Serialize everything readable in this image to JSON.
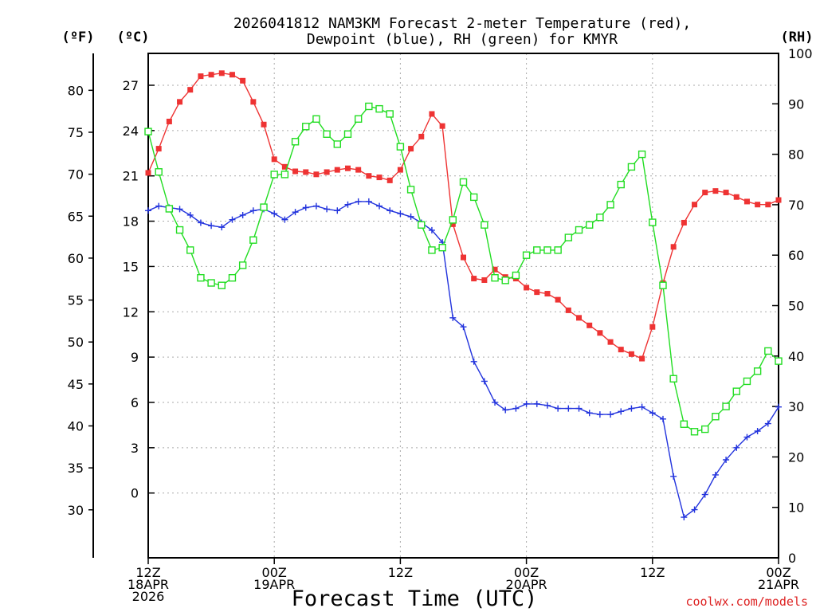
{
  "chart_data": {
    "type": "line",
    "title": [
      "2026041812 NAM3KM Forecast 2-meter Temperature (red),",
      "Dewpoint (blue), RH (green) for KMYR"
    ],
    "xlabel": "Forecast Time (UTC)",
    "credit": "coolwx.com/models",
    "units": {
      "f": "(ºF)",
      "c": "(ºC)",
      "rh": "(RH)"
    },
    "x_hours": [
      0,
      60
    ],
    "x_ticks": [
      {
        "hour": 0,
        "lines": [
          "12Z",
          "18APR",
          "2026"
        ]
      },
      {
        "hour": 12,
        "lines": [
          "00Z",
          "19APR"
        ]
      },
      {
        "hour": 24,
        "lines": [
          "12Z"
        ]
      },
      {
        "hour": 36,
        "lines": [
          "00Z",
          "20APR"
        ]
      },
      {
        "hour": 48,
        "lines": [
          "12Z"
        ]
      },
      {
        "hour": 60,
        "lines": [
          "00Z",
          "21APR"
        ]
      }
    ],
    "y_c": {
      "range": [
        -4.29,
        29.11
      ],
      "ticks": [
        "0",
        "3",
        "6",
        "9",
        "12",
        "15",
        "18",
        "21",
        "24",
        "27"
      ]
    },
    "y_f": {
      "range": [
        24.28,
        84.4
      ],
      "ticks": [
        "30",
        "35",
        "40",
        "45",
        "50",
        "55",
        "60",
        "65",
        "70",
        "75",
        "80"
      ]
    },
    "y_rh": {
      "range": [
        0,
        100
      ],
      "ticks": [
        "0",
        "10",
        "20",
        "30",
        "40",
        "50",
        "60",
        "70",
        "80",
        "90",
        "100"
      ]
    },
    "colors": {
      "temperature": "#ee3333",
      "dewpoint": "#2233dd",
      "rh": "#22dd22"
    },
    "series": [
      {
        "name": "Temperature (°C)",
        "axis": "c",
        "x": [
          0,
          1,
          2,
          3,
          4,
          5,
          6,
          7,
          8,
          9,
          10,
          11,
          12,
          13,
          14,
          15,
          16,
          17,
          18,
          19,
          20,
          21,
          22,
          23,
          24,
          25,
          26,
          27,
          28,
          29,
          30,
          31,
          32,
          33,
          34,
          35,
          36,
          37,
          38,
          39,
          40,
          41,
          42,
          43,
          44,
          45,
          46,
          47,
          48,
          49,
          50,
          51,
          52,
          53,
          54,
          55,
          56,
          57,
          58,
          59,
          60
        ],
        "values": [
          21.2,
          22.8,
          24.6,
          25.9,
          26.7,
          27.6,
          27.7,
          27.8,
          27.7,
          27.3,
          25.9,
          24.4,
          22.1,
          21.6,
          21.3,
          21.25,
          21.1,
          21.25,
          21.4,
          21.5,
          21.4,
          21.0,
          20.9,
          20.7,
          21.4,
          22.8,
          23.6,
          25.1,
          24.3,
          17.8,
          15.6,
          14.2,
          14.1,
          14.8,
          14.3,
          14.2,
          13.6,
          13.3,
          13.2,
          12.8,
          12.1,
          11.6,
          11.1,
          10.6,
          10.0,
          9.5,
          9.2,
          8.9,
          11.0,
          13.9,
          16.3,
          17.9,
          19.1,
          19.9,
          20.0,
          19.9,
          19.6,
          19.3,
          19.1,
          19.1,
          19.4
        ]
      },
      {
        "name": "Dewpoint (°C)",
        "axis": "c",
        "x": [
          0,
          1,
          2,
          3,
          4,
          5,
          6,
          7,
          8,
          9,
          10,
          11,
          12,
          13,
          14,
          15,
          16,
          17,
          18,
          19,
          20,
          21,
          22,
          23,
          24,
          25,
          26,
          27,
          28,
          29,
          30,
          31,
          32,
          33,
          34,
          35,
          36,
          37,
          38,
          39,
          40,
          41,
          42,
          43,
          44,
          45,
          46,
          47,
          48,
          49,
          50,
          51,
          52,
          53,
          54,
          55,
          56,
          57,
          58,
          59,
          60
        ],
        "values": [
          18.7,
          19.0,
          18.9,
          18.8,
          18.4,
          17.9,
          17.7,
          17.6,
          18.1,
          18.4,
          18.7,
          18.8,
          18.5,
          18.1,
          18.6,
          18.9,
          19.0,
          18.8,
          18.7,
          19.1,
          19.3,
          19.3,
          19.0,
          18.7,
          18.5,
          18.3,
          17.9,
          17.4,
          16.6,
          11.6,
          11.0,
          8.7,
          7.4,
          6.0,
          5.5,
          5.6,
          5.9,
          5.9,
          5.8,
          5.6,
          5.6,
          5.6,
          5.3,
          5.2,
          5.2,
          5.4,
          5.6,
          5.7,
          5.3,
          4.9,
          1.1,
          -1.6,
          -1.1,
          -0.1,
          1.2,
          2.2,
          3.0,
          3.7,
          4.1,
          4.6,
          5.7
        ]
      },
      {
        "name": "RH (%)",
        "axis": "rh",
        "x": [
          0,
          1,
          2,
          3,
          4,
          5,
          6,
          7,
          8,
          9,
          10,
          11,
          12,
          13,
          14,
          15,
          16,
          17,
          18,
          19,
          20,
          21,
          22,
          23,
          24,
          25,
          26,
          27,
          28,
          29,
          30,
          31,
          32,
          33,
          34,
          35,
          36,
          37,
          38,
          39,
          40,
          41,
          42,
          43,
          44,
          45,
          46,
          47,
          48,
          49,
          50,
          51,
          52,
          53,
          54,
          55,
          56,
          57,
          58,
          59,
          60
        ],
        "values": [
          84.5,
          76.5,
          69.2,
          65.0,
          61.0,
          55.5,
          54.5,
          54.0,
          55.5,
          58.0,
          63.0,
          69.5,
          76.0,
          76.0,
          82.5,
          85.5,
          87.0,
          84.0,
          82.0,
          84.0,
          87.0,
          89.5,
          89.0,
          88.0,
          81.5,
          73.0,
          66.0,
          61.0,
          61.5,
          67.0,
          74.5,
          71.5,
          66.0,
          55.5,
          55.0,
          56.0,
          60.0,
          61.0,
          61.0,
          61.0,
          63.5,
          65.0,
          66.0,
          67.5,
          70.0,
          74.0,
          77.5,
          80.0,
          66.5,
          54.0,
          35.5,
          26.5,
          25.0,
          25.5,
          28.0,
          30.0,
          33.0,
          35.0,
          37.0,
          41.0,
          39.0
        ]
      }
    ]
  }
}
